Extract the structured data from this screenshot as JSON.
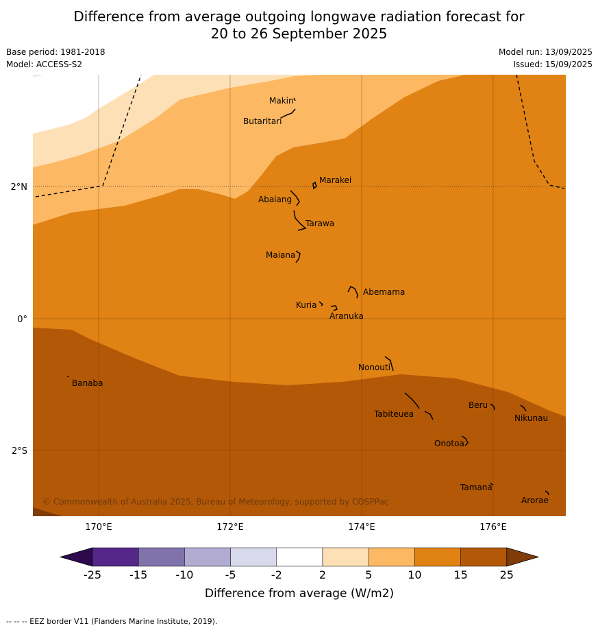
{
  "title_line1": "Difference from average outgoing longwave radiation forecast for",
  "title_line2": "20 to 26 September 2025",
  "base_period": "Base period: 1981-2018",
  "model": "Model: ACCESS-S2",
  "model_run": "Model run: 13/09/2025",
  "issued": "Issued: 15/09/2025",
  "lat_ticks": [
    "2°N",
    "0°",
    "2°S"
  ],
  "lon_ticks": [
    "170°E",
    "172°E",
    "174°E",
    "176°E"
  ],
  "places": {
    "makin": "Makin",
    "butaritari": "Butaritari",
    "marakei": "Marakei",
    "abaiang": "Abaiang",
    "tarawa": "Tarawa",
    "maiana": "Maiana",
    "abemama": "Abemama",
    "kuria": "Kuria",
    "aranuka": "Aranuka",
    "nonouti": "Nonouti",
    "banaba": "Banaba",
    "beru": "Beru",
    "tabiteuea": "Tabiteuea",
    "nikunau": "Nikunau",
    "onotoa": "Onotoa",
    "tamana": "Tamana",
    "arorae": "Arorae"
  },
  "copyright": "© Commonwealth of Australia 2025, Bureau of Meteorology, supported by COSPPac",
  "colorbar": {
    "labels": [
      "-25",
      "-15",
      "-10",
      "-5",
      "-2",
      "2",
      "5",
      "10",
      "15",
      "25"
    ],
    "colors": [
      "#2d0a4e",
      "#542788",
      "#8073ac",
      "#b2abd2",
      "#d8daeb",
      "#ffffff",
      "#fee0b6",
      "#fdb863",
      "#e08214",
      "#b35806",
      "#7f3b08"
    ],
    "title": "Difference from average (W/m2)"
  },
  "footer": "--  --  -- EEZ border V11 (Flanders Marine Institute, 2019)."
}
